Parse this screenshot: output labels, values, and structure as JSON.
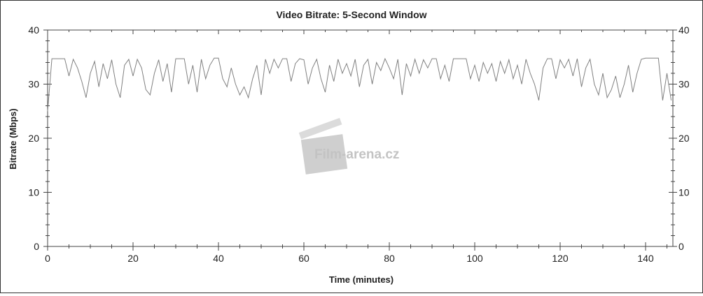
{
  "chart_data": {
    "type": "line",
    "title": "Video Bitrate: 5-Second Window",
    "xlabel": "Time (minutes)",
    "ylabel": "Bitrate (Mbps)",
    "xlim": [
      0,
      146.5
    ],
    "ylim": [
      0,
      40
    ],
    "x_ticks": [
      0,
      20,
      40,
      60,
      80,
      100,
      120,
      140
    ],
    "y_ticks": [
      0,
      10,
      20,
      30,
      40
    ],
    "x_minor_step": 5,
    "y_minor_step": 2,
    "grid": false,
    "line_color": "#808080",
    "x_step_minutes": 1,
    "values": [
      25,
      34.7,
      34.7,
      34.7,
      34.7,
      31.5,
      34.6,
      33,
      30.5,
      27.5,
      32,
      34.2,
      29.5,
      33.8,
      31,
      34.5,
      30,
      27.5,
      33.5,
      34.6,
      31.5,
      34.6,
      33,
      29,
      28,
      32,
      34.5,
      30.5,
      33.8,
      28.5,
      34.7,
      34.7,
      34.7,
      30,
      33.5,
      28.5,
      34.6,
      31,
      33.5,
      34.8,
      34.8,
      31,
      29.5,
      33,
      30,
      28,
      29.5,
      27.5,
      31,
      33.5,
      28,
      34.6,
      32,
      34.6,
      33,
      34.7,
      34.7,
      30.5,
      33.8,
      34.7,
      34.5,
      30,
      33,
      34.6,
      31,
      28.5,
      33.5,
      30.5,
      34.6,
      32,
      33.8,
      31.5,
      34.6,
      29.5,
      33.5,
      34.6,
      30,
      34,
      32.5,
      34.7,
      33,
      31,
      34.6,
      28,
      33.8,
      31.5,
      34.6,
      32,
      34.5,
      33,
      34.7,
      34.7,
      31,
      33.5,
      30.5,
      34.7,
      34.7,
      34.7,
      34.7,
      31,
      33.5,
      30.5,
      34,
      32,
      33.8,
      30.5,
      34.2,
      32,
      34.5,
      31,
      33.5,
      30,
      34.6,
      32,
      30,
      27,
      33,
      34.7,
      34.7,
      31,
      34.5,
      33,
      34.6,
      31.5,
      34.7,
      29.5,
      33,
      34.6,
      30,
      28,
      32,
      27.5,
      29,
      31.5,
      27.5,
      30,
      33.5,
      28.5,
      32,
      34.6,
      34.8,
      34.8,
      34.8,
      34.8,
      27,
      32,
      27
    ]
  },
  "watermark": {
    "text": "Film-arena.cz"
  }
}
